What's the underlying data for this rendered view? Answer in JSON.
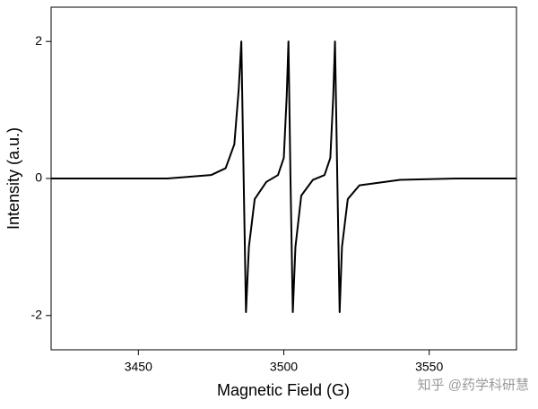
{
  "chart_data": {
    "type": "line",
    "x_label": "Magnetic Field (G)",
    "y_label": "Intensity (a.u.)",
    "watermark": "知乎 @药学科研慧",
    "xlim": [
      3420,
      3580
    ],
    "xticks": [
      3450,
      3500,
      3550
    ],
    "ylim": [
      -2.5,
      2.5
    ],
    "yticks": [
      -2,
      0,
      2
    ],
    "series": [
      {
        "color": "#000000",
        "x": [
          3420,
          3440,
          3460,
          3475,
          3480,
          3483,
          3484.5,
          3485.4,
          3486.2,
          3487,
          3488,
          3490,
          3494,
          3498,
          3500,
          3501,
          3501.6,
          3502.3,
          3503.1,
          3504,
          3506,
          3510,
          3514,
          3516,
          3517,
          3517.6,
          3518.4,
          3519.2,
          3520,
          3522,
          3526,
          3540,
          3560,
          3580
        ],
        "values": [
          0,
          0,
          0,
          0.05,
          0.15,
          0.5,
          1.3,
          2.0,
          0,
          -1.95,
          -1.0,
          -0.3,
          -0.05,
          0.05,
          0.3,
          1.2,
          2.0,
          0,
          -1.95,
          -1.0,
          -0.25,
          -0.02,
          0.05,
          0.3,
          1.2,
          2.0,
          0,
          -1.95,
          -1.0,
          -0.3,
          -0.1,
          -0.02,
          0,
          0
        ]
      }
    ]
  }
}
